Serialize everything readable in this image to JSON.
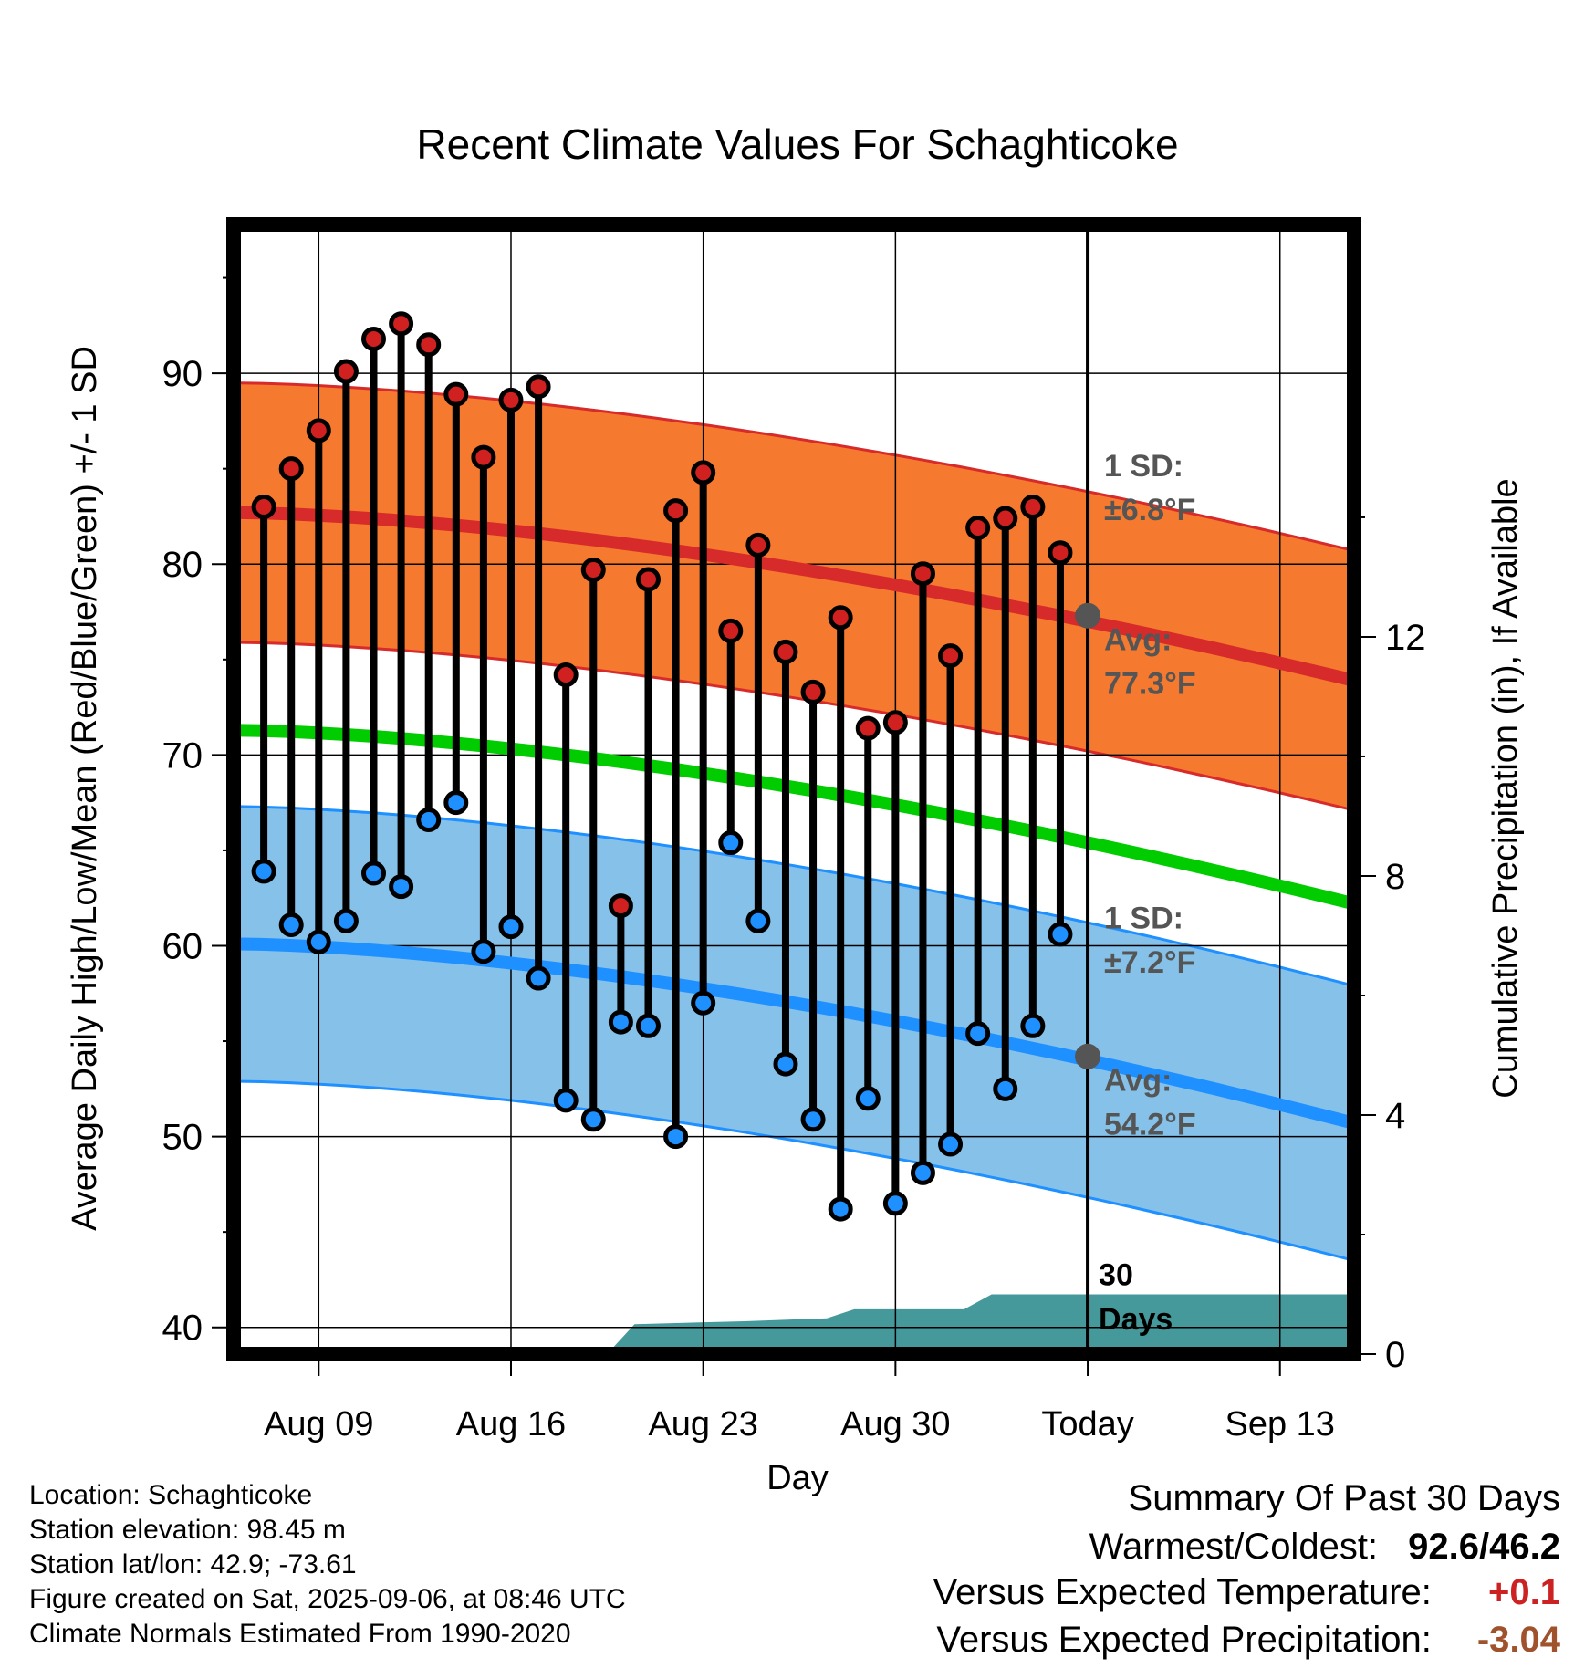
{
  "chart_data": {
    "type": "line",
    "title": "Recent Climate Values For Schaghticoke",
    "xlabel": "Day",
    "ylabel": "Average Daily High/Low/Mean (Red/Blue/Green) +/- 1 SD",
    "y2label": "Cumulative Precipitation (in), If Available",
    "ylim": [
      38.6,
      97.8
    ],
    "yticks": [
      40,
      50,
      60,
      70,
      80,
      90
    ],
    "y2lim": [
      0,
      18.9
    ],
    "y2ticks": [
      0,
      4,
      8,
      12
    ],
    "x_tick_labels": [
      "Aug 09",
      "Aug 16",
      "Aug 23",
      "Aug 30",
      "Today",
      "Sep 13"
    ],
    "x_tick_days": [
      9,
      16,
      23,
      30,
      37,
      44
    ],
    "xlim": [
      5.9,
      46.7
    ],
    "today_day": 37,
    "grid": true,
    "days": [
      7,
      8,
      9,
      10,
      11,
      12,
      13,
      14,
      15,
      16,
      17,
      18,
      19,
      20,
      21,
      22,
      23,
      24,
      25,
      26,
      27,
      28,
      29,
      30,
      31,
      32,
      33,
      34,
      35,
      36
    ],
    "series": [
      {
        "name": "High",
        "color": "#d02020",
        "values": [
          83.0,
          85.0,
          87.0,
          90.1,
          91.8,
          92.6,
          91.5,
          88.9,
          85.6,
          88.6,
          89.3,
          74.2,
          79.7,
          62.1,
          79.2,
          82.8,
          84.8,
          76.5,
          81.0,
          75.4,
          73.3,
          77.2,
          71.4,
          71.7,
          79.5,
          75.2,
          81.9,
          82.4,
          83.0,
          80.6
        ]
      },
      {
        "name": "Low",
        "color": "#1e90ff",
        "values": [
          63.9,
          61.1,
          60.2,
          61.3,
          63.8,
          63.1,
          66.6,
          67.5,
          59.7,
          61.0,
          58.3,
          51.9,
          50.9,
          56.0,
          55.8,
          50.0,
          57.0,
          65.4,
          61.3,
          53.8,
          50.9,
          46.2,
          52.0,
          46.5,
          48.1,
          49.6,
          55.4,
          52.5,
          55.8,
          60.6
        ]
      }
    ],
    "normals": {
      "high_mean": [
        82.7,
        73.9
      ],
      "high_sd": 6.8,
      "low_mean": [
        60.1,
        50.7
      ],
      "low_sd": 7.2,
      "mean": [
        71.3,
        62.2
      ]
    },
    "annotations": {
      "high_sd_line1": "1 SD:",
      "high_sd_line2": "±6.8°F",
      "high_avg_line1": "Avg:",
      "high_avg_line2": "77.3°F",
      "low_sd_line1": "1 SD:",
      "low_sd_line2": "±7.2°F",
      "low_avg_line1": "Avg:",
      "low_avg_line2": "54.2°F",
      "days_line1": "30",
      "days_line2": "Days"
    },
    "today_high_avg": 77.3,
    "today_low_avg": 54.2,
    "precipitation": {
      "color": "#45999b",
      "days": [
        19.5,
        20.5,
        24.5,
        27.5,
        28.5,
        32.5,
        33.5,
        36.5,
        46.7
      ],
      "values": [
        0,
        0.5,
        0.55,
        0.6,
        0.75,
        0.75,
        1.0,
        1.0,
        1.0
      ]
    },
    "colors": {
      "high_band": "#f5792e",
      "high_line": "#d72a2a",
      "low_band": "#85c1e9",
      "low_line": "#1e90ff",
      "mean_line": "#00cc00",
      "frame": "#000000",
      "marker_outline": "#000000"
    }
  },
  "info": {
    "location": "Location: Schaghticoke",
    "elevation": "Station elevation: 98.45 m",
    "latlon": "Station lat/lon: 42.9; -73.61",
    "created": "Figure created on Sat, 2025-09-06, at 08:46 UTC",
    "normals": "Climate Normals Estimated From 1990-2020"
  },
  "summary": {
    "title": "Summary Of Past 30 Days",
    "warmest_coldest_label": "Warmest/Coldest:",
    "warmest_coldest_value": "92.6/46.2",
    "temp_label": "Versus Expected Temperature:",
    "temp_value": "+0.1",
    "temp_color": "#cc2222",
    "precip_label": "Versus Expected Precipitation:",
    "precip_value": "-3.04",
    "precip_color": "#a0522d"
  }
}
